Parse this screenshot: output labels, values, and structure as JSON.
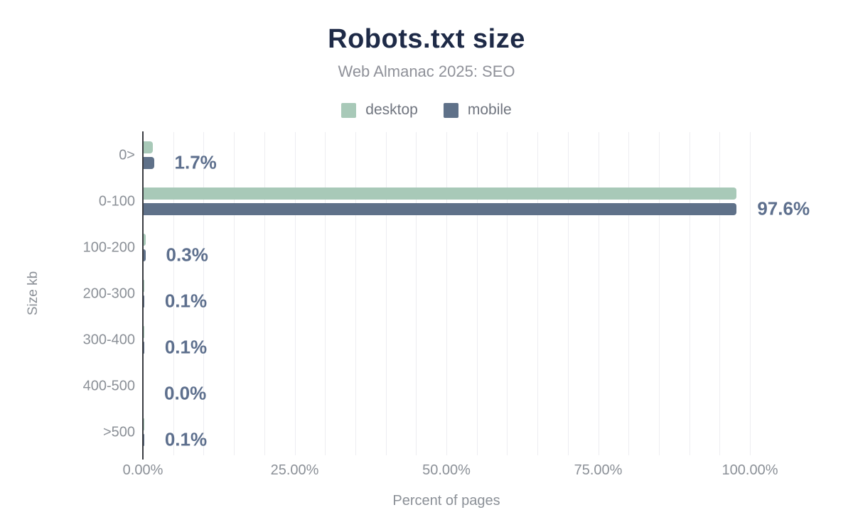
{
  "header": {
    "title": "Robots.txt size",
    "subtitle": "Web Almanac 2025: SEO"
  },
  "legend": [
    {
      "label": "desktop",
      "color": "#a8c9b8"
    },
    {
      "label": "mobile",
      "color": "#5f7189"
    }
  ],
  "chart_data": {
    "type": "bar",
    "orientation": "horizontal",
    "title": "Robots.txt size",
    "subtitle": "Web Almanac 2025: SEO",
    "xlabel": "Percent of pages",
    "ylabel": "Size kb",
    "categories": [
      "0>",
      "0-100",
      "100-200",
      "200-300",
      "300-400",
      "400-500",
      ">500"
    ],
    "series": [
      {
        "name": "desktop",
        "color": "#a8c9b8",
        "values": [
          1.5,
          97.7,
          0.3,
          0.1,
          0.1,
          0.0,
          0.1
        ]
      },
      {
        "name": "mobile",
        "color": "#5f7189",
        "values": [
          1.7,
          97.6,
          0.3,
          0.1,
          0.1,
          0.0,
          0.1
        ]
      }
    ],
    "bar_labels": [
      "1.7%",
      "97.6%",
      "0.3%",
      "0.1%",
      "0.1%",
      "0.0%",
      "0.1%"
    ],
    "x_ticks": [
      "0.00%",
      "25.00%",
      "50.00%",
      "75.00%",
      "100.00%"
    ],
    "x_tick_values": [
      0,
      25,
      50,
      75,
      100
    ],
    "xlim": [
      0,
      100
    ],
    "gridline_step": 5,
    "grid": true,
    "legend_position": "top"
  },
  "colors": {
    "background": "#ffffff",
    "title": "#1e2a47",
    "subtitle": "#8f9199",
    "axis_text": "#8b9097",
    "legend_text": "#70757f",
    "desktop": "#a8c9b8",
    "mobile": "#5f7189",
    "value_label": "#5d6f8d",
    "gridline": "#ededf1",
    "axis_line": "#3a3c41"
  }
}
